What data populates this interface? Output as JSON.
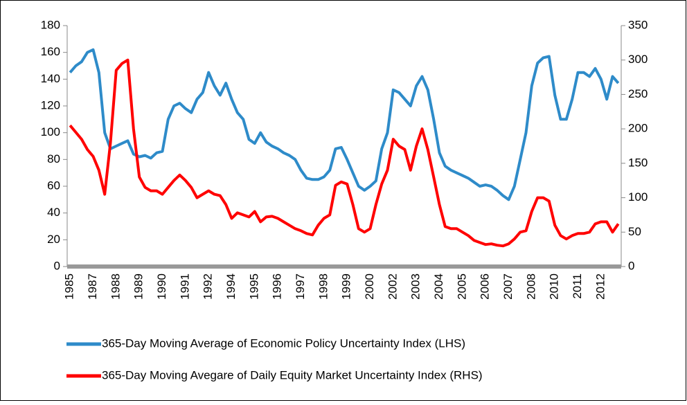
{
  "chart_data": {
    "type": "line",
    "categories": [
      "1985",
      null,
      null,
      null,
      "1987",
      null,
      null,
      null,
      "1988",
      null,
      null,
      null,
      "1989",
      null,
      null,
      null,
      "1990",
      null,
      null,
      null,
      "1991",
      null,
      null,
      null,
      "1992",
      null,
      null,
      null,
      "1994",
      null,
      null,
      null,
      "1995",
      null,
      null,
      null,
      "1996",
      null,
      null,
      null,
      "1997",
      null,
      null,
      null,
      "1998",
      null,
      null,
      null,
      "1999",
      null,
      null,
      null,
      "2000",
      null,
      null,
      null,
      "2002",
      null,
      null,
      null,
      "2003",
      null,
      null,
      null,
      "2004",
      null,
      null,
      null,
      "2005",
      null,
      null,
      null,
      "2006",
      null,
      null,
      null,
      "2007",
      null,
      null,
      null,
      "2008",
      null,
      null,
      null,
      "2010",
      null,
      null,
      null,
      "2011",
      null,
      null,
      null,
      "2012",
      null,
      null,
      null
    ],
    "series": [
      {
        "name": "365-Day Moving Average of Economic Policy Uncertainty Index (LHS)",
        "color": "#2e8bc9",
        "axis": "y",
        "values": [
          145,
          150,
          153,
          160,
          162,
          145,
          100,
          88,
          90,
          92,
          94,
          84,
          82,
          83,
          81,
          85,
          86,
          110,
          120,
          122,
          118,
          115,
          125,
          130,
          145,
          135,
          128,
          137,
          125,
          115,
          110,
          95,
          92,
          100,
          93,
          90,
          88,
          85,
          83,
          80,
          72,
          66,
          65,
          65,
          67,
          72,
          88,
          89,
          80,
          70,
          60,
          57,
          60,
          64,
          88,
          100,
          132,
          130,
          125,
          120,
          135,
          142,
          132,
          110,
          85,
          75,
          72,
          70,
          68,
          66,
          63,
          60,
          61,
          60,
          57,
          53,
          50,
          60,
          80,
          100,
          135,
          152,
          156,
          157,
          128,
          110,
          110,
          125,
          145,
          145,
          142,
          148,
          140,
          125,
          142,
          137
        ]
      },
      {
        "name": "365-Day Moving Avegare of Daily Equity Market Uncertainty Index (RHS)",
        "color": "#ff0000",
        "axis": "y2",
        "values": [
          205,
          195,
          185,
          170,
          160,
          140,
          105,
          180,
          285,
          295,
          300,
          200,
          130,
          115,
          110,
          110,
          105,
          115,
          125,
          133,
          125,
          115,
          100,
          105,
          110,
          105,
          103,
          90,
          70,
          78,
          75,
          72,
          80,
          65,
          72,
          73,
          70,
          65,
          60,
          55,
          52,
          48,
          46,
          60,
          70,
          75,
          118,
          123,
          120,
          90,
          55,
          50,
          55,
          90,
          120,
          140,
          185,
          175,
          170,
          140,
          175,
          200,
          170,
          130,
          90,
          58,
          55,
          55,
          50,
          45,
          38,
          35,
          32,
          33,
          31,
          30,
          33,
          40,
          50,
          52,
          80,
          100,
          100,
          95,
          60,
          45,
          40,
          45,
          48,
          48,
          50,
          62,
          65,
          65,
          50,
          62
        ]
      }
    ],
    "ylim": [
      0,
      180
    ],
    "yticks": [
      0,
      20,
      40,
      60,
      80,
      100,
      120,
      140,
      160,
      180
    ],
    "y2lim": [
      0,
      350
    ],
    "y2ticks": [
      0,
      50,
      100,
      150,
      200,
      250,
      300,
      350
    ]
  }
}
